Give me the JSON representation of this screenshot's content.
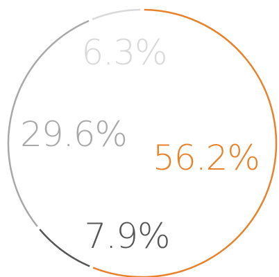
{
  "chart_data": {
    "type": "pie",
    "style": "ring-outline",
    "slices": [
      {
        "value": 56.2,
        "label": "56.2%",
        "color": "#E8822A"
      },
      {
        "value": 7.9,
        "label": "7.9%",
        "color": "#555555"
      },
      {
        "value": 29.6,
        "label": "29.6%",
        "color": "#A8A8A8"
      },
      {
        "value": 6.3,
        "label": "6.3%",
        "color": "#D9D9D9"
      }
    ],
    "start_angle": "top",
    "direction": "clockwise",
    "legend": "none",
    "grid": false
  }
}
